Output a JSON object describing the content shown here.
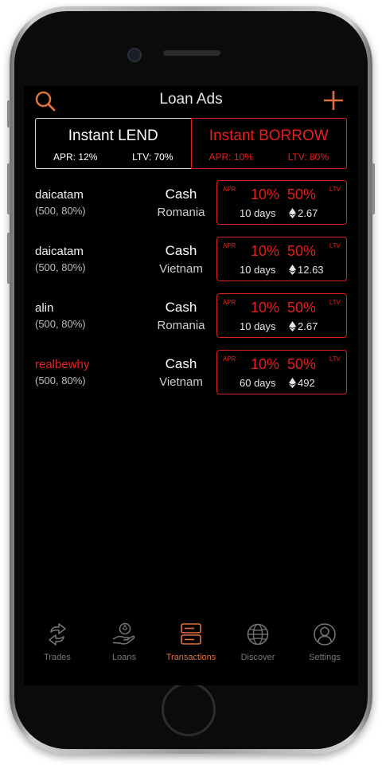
{
  "header": {
    "title": "Loan Ads"
  },
  "toggle": {
    "lend": {
      "label": "Instant LEND",
      "apr": "APR: 12%",
      "ltv": "LTV: 70%"
    },
    "borrow": {
      "label": "Instant BORROW",
      "apr": "APR: 10%",
      "ltv": "LTV: 80%"
    }
  },
  "ads": [
    {
      "user": "daicatam",
      "params": "(500, 80%)",
      "type": "Cash",
      "location": "Romania",
      "apr_label": "APR",
      "apr": "10%",
      "ltv_label": "LTV",
      "ltv": "50%",
      "duration": "10 days",
      "amount": "2.67"
    },
    {
      "user": "daicatam",
      "params": "(500, 80%)",
      "type": "Cash",
      "location": "Vietnam",
      "apr_label": "APR",
      "apr": "10%",
      "ltv_label": "LTV",
      "ltv": "50%",
      "duration": "10 days",
      "amount": "12.63"
    },
    {
      "user": "alin",
      "params": "(500, 80%)",
      "type": "Cash",
      "location": "Romania",
      "apr_label": "APR",
      "apr": "10%",
      "ltv_label": "LTV",
      "ltv": "50%",
      "duration": "10 days",
      "amount": "2.67"
    },
    {
      "user": "realbewhy",
      "params": "(500, 80%)",
      "type": "Cash",
      "location": "Vietnam",
      "apr_label": "APR",
      "apr": "10%",
      "ltv_label": "LTV",
      "ltv": "50%",
      "duration": "60 days",
      "amount": "492"
    }
  ],
  "tabs": [
    {
      "label": "Trades",
      "icon": "swap-arrows-icon"
    },
    {
      "label": "Loans",
      "icon": "hand-coin-icon"
    },
    {
      "label": "Transactions",
      "icon": "server-icon",
      "active": true
    },
    {
      "label": "Discover",
      "icon": "globe-icon"
    },
    {
      "label": "Settings",
      "icon": "user-circle-icon"
    }
  ],
  "colors": {
    "accent": "#e0713a",
    "borrow_red": "#e81e1e",
    "background": "#000000",
    "tab_inactive": "#777777"
  }
}
